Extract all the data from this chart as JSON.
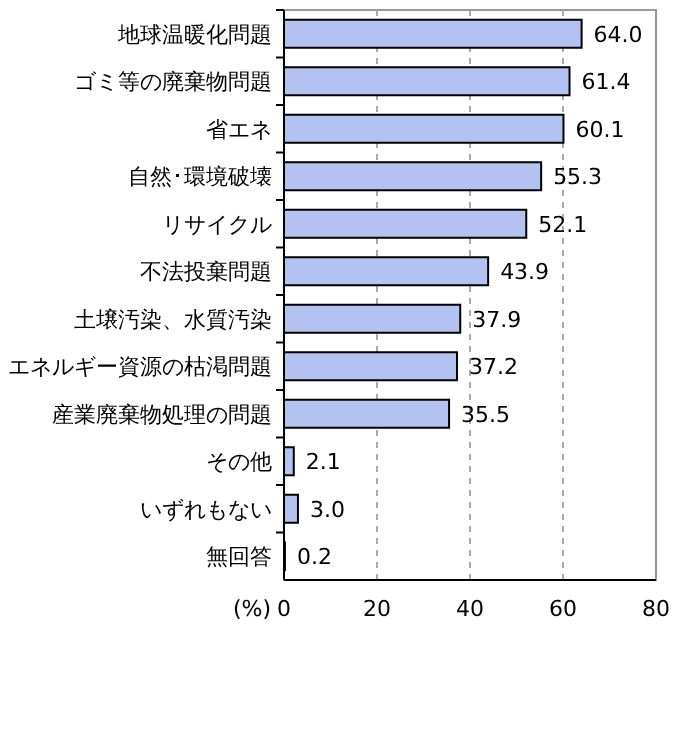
{
  "chart_data": {
    "type": "bar",
    "orientation": "horizontal",
    "xlabel": "(%)",
    "categories": [
      "地球温暖化問題",
      "ゴミ等の廃棄物問題",
      "省エネ",
      "自然･環境破壊",
      "リサイクル",
      "不法投棄問題",
      "土壌汚染、水質汚染",
      "エネルギー資源の枯渇問題",
      "産業廃棄物処理の問題",
      "その他",
      "いずれもない",
      "無回答"
    ],
    "values": [
      64.0,
      61.4,
      60.1,
      55.3,
      52.1,
      43.9,
      37.9,
      37.2,
      35.5,
      2.1,
      3.0,
      0.2
    ],
    "value_labels": [
      "64.0",
      "61.4",
      "60.1",
      "55.3",
      "52.1",
      "43.9",
      "37.9",
      "37.2",
      "35.5",
      "2.1",
      "3.0",
      "0.2"
    ],
    "color": "#b4c2f2",
    "xlim": [
      0,
      80
    ],
    "xticks": [
      0,
      20,
      40,
      60,
      80
    ],
    "grid": "x"
  }
}
